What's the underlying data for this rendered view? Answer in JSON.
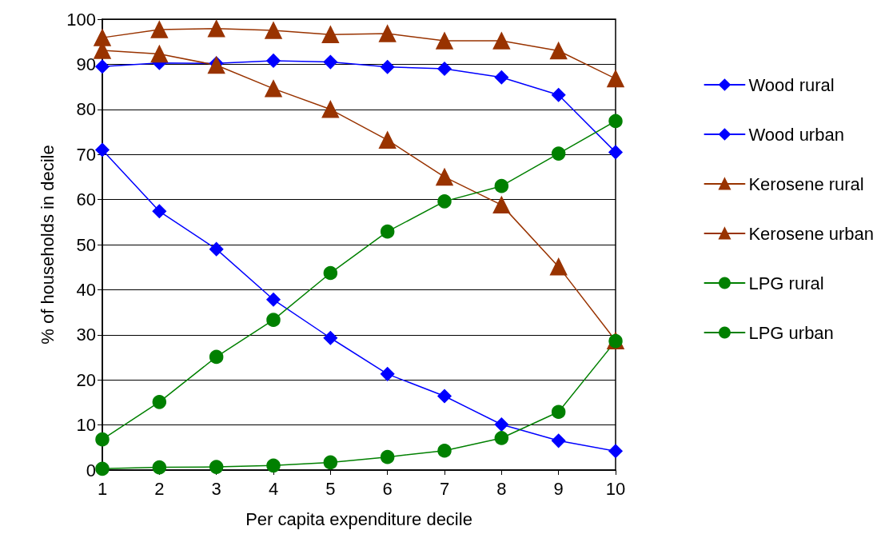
{
  "chart_data": {
    "type": "line",
    "xlabel": "Per capita expenditure decile",
    "ylabel": "% of households in decile",
    "categories": [
      "1",
      "2",
      "3",
      "4",
      "5",
      "6",
      "7",
      "8",
      "9",
      "10"
    ],
    "ylim": [
      0,
      100
    ],
    "yticks": [
      0,
      10,
      20,
      30,
      40,
      50,
      60,
      70,
      80,
      90,
      100
    ],
    "grid": "y",
    "legend": "right",
    "line_style": "solid",
    "series": [
      {
        "name": "Wood rural",
        "color": "#0000ff",
        "marker": "diamond",
        "values": [
          89.5,
          90.3,
          90.2,
          90.8,
          90.5,
          89.4,
          89.0,
          87.1,
          83.2,
          70.5
        ]
      },
      {
        "name": "Wood urban",
        "color": "#0000ff",
        "marker": "diamond",
        "values": [
          71.0,
          57.4,
          49.0,
          37.8,
          29.3,
          21.3,
          16.4,
          10.1,
          6.5,
          4.2
        ]
      },
      {
        "name": "Kerosene rural",
        "color": "#993300",
        "marker": "triangle",
        "values": [
          95.9,
          97.7,
          97.9,
          97.5,
          96.6,
          96.8,
          95.2,
          95.2,
          93.0,
          86.8
        ]
      },
      {
        "name": "Kerosene urban",
        "color": "#993300",
        "marker": "triangle",
        "values": [
          93.1,
          92.3,
          89.8,
          84.6,
          80.0,
          73.2,
          65.0,
          58.8,
          45.1,
          28.7
        ]
      },
      {
        "name": "LPG rural",
        "color": "#008000",
        "marker": "circle",
        "values": [
          0.3,
          0.6,
          0.7,
          1.0,
          1.7,
          2.9,
          4.3,
          7.1,
          12.9,
          28.6
        ]
      },
      {
        "name": "LPG urban",
        "color": "#008000",
        "marker": "circle",
        "values": [
          6.8,
          15.1,
          25.1,
          33.3,
          43.7,
          52.9,
          59.6,
          63.0,
          70.2,
          77.4
        ]
      }
    ]
  }
}
